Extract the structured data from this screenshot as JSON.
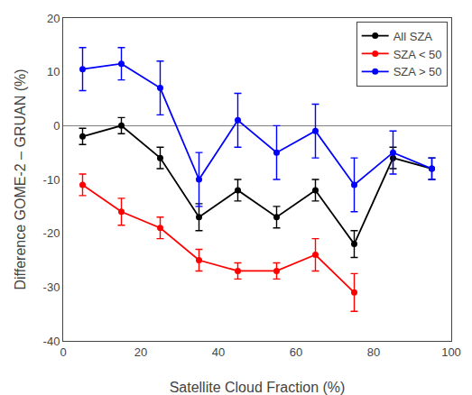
{
  "chart_data": {
    "type": "line",
    "xlabel": "Satellite Cloud Fraction (%)",
    "ylabel": "Difference GOME-2 – GRUAN (%)",
    "x": [
      5,
      15,
      25,
      35,
      45,
      55,
      65,
      75,
      85,
      95
    ],
    "series": [
      {
        "name": "All SZA",
        "color": "#000000",
        "marker": "circle",
        "values": [
          -2,
          0,
          -6,
          -17,
          -12,
          -17,
          -12,
          -22,
          -6,
          -8
        ],
        "error": [
          1.5,
          1.5,
          2,
          2.5,
          2,
          2,
          2,
          2.5,
          2,
          2
        ]
      },
      {
        "name": "SZA < 50",
        "color": "#FF0000",
        "marker": "circle",
        "values": [
          -11,
          -16,
          -19,
          -25,
          -27,
          -27,
          -24,
          -31,
          null,
          null
        ],
        "error": [
          2,
          2.5,
          2,
          2,
          1.5,
          1.5,
          3,
          3.5,
          null,
          null
        ]
      },
      {
        "name": "SZA > 50",
        "color": "#0000FF",
        "marker": "circle",
        "values": [
          10.5,
          11.5,
          7,
          -10,
          1,
          -5,
          -1,
          -11,
          -5,
          -8
        ],
        "error": [
          4,
          3,
          5,
          5,
          5,
          5,
          5,
          5,
          4,
          2
        ]
      }
    ],
    "xlim": [
      0,
      100
    ],
    "ylim": [
      -40,
      20
    ],
    "xticks": [
      0,
      20,
      40,
      60,
      80,
      100
    ],
    "yticks": [
      -40,
      -30,
      -20,
      -10,
      0,
      10,
      20
    ],
    "grid": false,
    "legend": "upper right"
  }
}
